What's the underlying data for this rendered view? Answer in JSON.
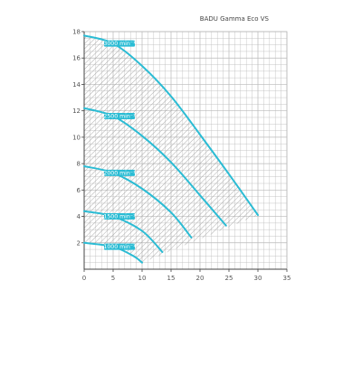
{
  "colors": {
    "curve": "#2bbcd4",
    "grid": "#b9b9b9",
    "hatch": "#9a9a9a",
    "axis": "#444444",
    "label_bg": "#2bbcd4",
    "label_text": "#ffffff"
  },
  "chart_data": {
    "type": "line",
    "title": "BADU Gamma Eco VS",
    "xlabel": "",
    "ylabel": "",
    "xlim": [
      0,
      35
    ],
    "ylim": [
      0,
      18
    ],
    "x_ticks": [
      0,
      5,
      10,
      15,
      20,
      25,
      30,
      35
    ],
    "y_ticks": [
      2,
      4,
      6,
      8,
      10,
      12,
      14,
      16,
      18
    ],
    "grid": true,
    "hatched_operating_area": true,
    "series": [
      {
        "name": "3000 min⁻¹",
        "points": [
          [
            0,
            17.7
          ],
          [
            5,
            17.1
          ],
          [
            10,
            15.4
          ],
          [
            15,
            13.1
          ],
          [
            20,
            10.2
          ],
          [
            25,
            7.2
          ],
          [
            30,
            4.1
          ]
        ]
      },
      {
        "name": "2500 min⁻¹",
        "points": [
          [
            0,
            12.2
          ],
          [
            5,
            11.6
          ],
          [
            10,
            10.1
          ],
          [
            15,
            8.1
          ],
          [
            20,
            5.6
          ],
          [
            24.5,
            3.3
          ]
        ]
      },
      {
        "name": "2000 min⁻¹",
        "points": [
          [
            0,
            7.8
          ],
          [
            5,
            7.3
          ],
          [
            10,
            6.1
          ],
          [
            15,
            4.3
          ],
          [
            18.5,
            2.4
          ]
        ]
      },
      {
        "name": "1500 min⁻¹",
        "points": [
          [
            0,
            4.4
          ],
          [
            5,
            4.0
          ],
          [
            10,
            2.9
          ],
          [
            13.5,
            1.3
          ]
        ]
      },
      {
        "name": "1000 min⁻¹",
        "points": [
          [
            0,
            2.0
          ],
          [
            5,
            1.7
          ],
          [
            8.5,
            1.0
          ],
          [
            10,
            0.5
          ]
        ]
      }
    ]
  }
}
